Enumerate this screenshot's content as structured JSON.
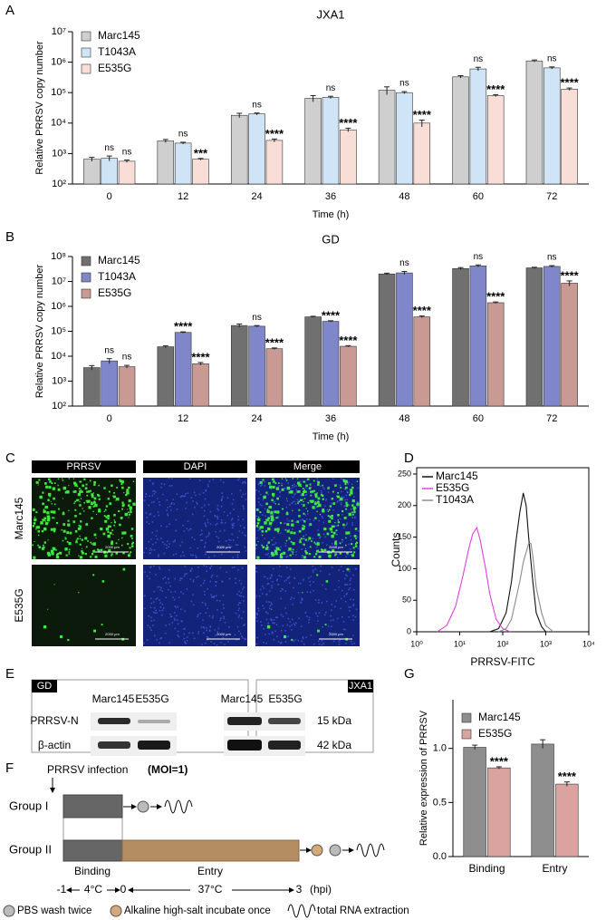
{
  "panel_labels": [
    "A",
    "B",
    "C",
    "D",
    "E",
    "F",
    "G"
  ],
  "chart_data": [
    {
      "type": "bar",
      "title": "JXA1",
      "xlabel": "Time (h)",
      "ylabel": "Relative PRRSV copy number",
      "categories": [
        "0",
        "12",
        "24",
        "36",
        "48",
        "60",
        "72"
      ],
      "log_y": true,
      "legend": "top-left",
      "ylim": [
        100,
        10000000
      ],
      "yticks": [
        {
          "value": 100,
          "label": "10²"
        },
        {
          "value": 1000,
          "label": "10³"
        },
        {
          "value": 10000,
          "label": "10⁴"
        },
        {
          "value": 100000,
          "label": "10⁵"
        },
        {
          "value": 1000000,
          "label": "10⁶"
        },
        {
          "value": 10000000,
          "label": "10⁷"
        }
      ],
      "series": [
        {
          "name": "Marc145",
          "color": "#cfcfcf",
          "values": [
            650,
            2600,
            18000,
            65000,
            120000,
            330000,
            1100000
          ],
          "errors": [
            100,
            300,
            3000,
            15000,
            35000,
            30000,
            80000
          ]
        },
        {
          "name": "T1043A",
          "color": "#cfe5f7",
          "values": [
            700,
            2200,
            20000,
            70000,
            100000,
            600000,
            650000
          ],
          "errors": [
            130,
            150,
            1500,
            6000,
            8000,
            80000,
            50000
          ],
          "sig": [
            "ns",
            "ns",
            "ns",
            "ns",
            "ns",
            "ns",
            "ns"
          ]
        },
        {
          "name": "E535G",
          "color": "#f9ddd7",
          "values": [
            560,
            650,
            2700,
            6000,
            10000,
            80000,
            130000
          ],
          "errors": [
            50,
            40,
            300,
            800,
            2500,
            6000,
            12000
          ],
          "sig": [
            "ns",
            "***",
            "****",
            "****",
            "****",
            "****",
            "****"
          ]
        }
      ]
    },
    {
      "type": "bar",
      "title": "GD",
      "xlabel": "Time (h)",
      "ylabel": "Relative PRRSV copy number",
      "categories": [
        "0",
        "12",
        "24",
        "36",
        "48",
        "60",
        "72"
      ],
      "log_y": true,
      "legend": "top-left",
      "ylim": [
        100,
        100000000
      ],
      "yticks": [
        {
          "value": 100,
          "label": "10²"
        },
        {
          "value": 1000,
          "label": "10³"
        },
        {
          "value": 10000,
          "label": "10⁴"
        },
        {
          "value": 100000,
          "label": "10⁵"
        },
        {
          "value": 1000000,
          "label": "10⁶"
        },
        {
          "value": 10000000,
          "label": "10⁷"
        },
        {
          "value": 100000000,
          "label": "10⁸"
        }
      ],
      "series": [
        {
          "name": "Marc145",
          "color": "#707070",
          "values": [
            3500,
            24000,
            170000,
            380000,
            20000000,
            33000000,
            35000000
          ],
          "errors": [
            700,
            2000,
            25000,
            20000,
            1500000,
            3000000,
            2000000
          ]
        },
        {
          "name": "T1043A",
          "color": "#7f86c9",
          "values": [
            6500,
            90000,
            160000,
            250000,
            22000000,
            42000000,
            40000000
          ],
          "errors": [
            1500,
            5000,
            10000,
            15000,
            3000000,
            4000000,
            3000000
          ],
          "sig": [
            "ns",
            "****",
            "ns",
            "****",
            "ns",
            "ns",
            "ns"
          ]
        },
        {
          "name": "E535G",
          "color": "#c99a94",
          "values": [
            3800,
            5000,
            20000,
            25000,
            380000,
            1400000,
            8500000
          ],
          "errors": [
            500,
            600,
            1500,
            1500,
            30000,
            100000,
            2000000
          ],
          "sig": [
            "ns",
            "****",
            "****",
            "****",
            "****",
            "****",
            "****"
          ]
        }
      ]
    },
    {
      "type": "line",
      "xlabel": "PRRSV-FITC",
      "ylabel": "Counts",
      "log_x": true,
      "legend": "top-left",
      "xlim": [
        1,
        10000
      ],
      "ylim": [
        0,
        260
      ],
      "xticks": [
        {
          "value": 1,
          "label": "10⁰"
        },
        {
          "value": 10,
          "label": "10¹"
        },
        {
          "value": 100,
          "label": "10²"
        },
        {
          "value": 1000,
          "label": "10³"
        },
        {
          "value": 10000,
          "label": "10⁴"
        }
      ],
      "yticks": [
        0,
        50,
        100,
        150,
        200,
        250
      ],
      "series": [
        {
          "name": "Marc145",
          "color": "#111111",
          "x": [
            50,
            80,
            120,
            160,
            200,
            250,
            300,
            350,
            400,
            500,
            600,
            800,
            1000
          ],
          "values": [
            0,
            5,
            30,
            80,
            140,
            190,
            220,
            200,
            150,
            80,
            30,
            8,
            0
          ]
        },
        {
          "name": "E535G",
          "color": "#e040e0",
          "x": [
            3,
            5,
            8,
            12,
            16,
            20,
            25,
            30,
            40,
            50,
            70,
            100,
            150
          ],
          "values": [
            0,
            10,
            40,
            90,
            130,
            155,
            165,
            145,
            100,
            60,
            20,
            5,
            0
          ]
        },
        {
          "name": "T1043A",
          "color": "#8a8a8a",
          "x": [
            80,
            120,
            160,
            200,
            250,
            300,
            400,
            450,
            500,
            600,
            800,
            1000,
            1500
          ],
          "values": [
            0,
            5,
            20,
            50,
            80,
            110,
            140,
            140,
            120,
            70,
            30,
            10,
            0
          ]
        }
      ]
    },
    {
      "type": "bar",
      "ylabel": "Relative expression of PRRSV",
      "categories": [
        "Binding",
        "Entry"
      ],
      "legend": "top-left",
      "ylim": [
        0,
        1.45
      ],
      "yticks": [
        {
          "value": 0,
          "label": "0.0"
        },
        {
          "value": 0.5,
          "label": "0.5"
        },
        {
          "value": 1,
          "label": "1.0"
        }
      ],
      "series": [
        {
          "name": "Marc145",
          "color": "#8e8e8e",
          "values": [
            1.01,
            1.04
          ],
          "errors": [
            0.02,
            0.04
          ]
        },
        {
          "name": "E535G",
          "color": "#dba39f",
          "values": [
            0.82,
            0.67
          ],
          "errors": [
            0.01,
            0.02
          ],
          "sig": [
            "****",
            "****"
          ]
        }
      ]
    }
  ],
  "micrographs": {
    "columns": [
      "PRRSV",
      "DAPI",
      "Merge"
    ],
    "rows": [
      "Marc145",
      "E535G"
    ],
    "scale_bar": "2000 μm"
  },
  "western": {
    "left": {
      "tag": "GD",
      "lanes": [
        "Marc145",
        "E535G"
      ],
      "rows": [
        "PRRSV-N",
        "β-actin"
      ]
    },
    "right": {
      "tag": "JXA1",
      "lanes": [
        "Marc145",
        "E535G"
      ],
      "sizes": [
        "15 kDa",
        "42 kDa"
      ]
    }
  },
  "schematic": {
    "infection": "PRRSV infection",
    "moi": "(MOI=1)",
    "groups": [
      "Group I",
      "Group II"
    ],
    "phases": [
      "Binding",
      "Entry"
    ],
    "timeline": [
      "-1",
      "4°C",
      "0",
      "37°C",
      "3",
      "(hpi)"
    ],
    "legend": [
      "PBS wash twice",
      "Alkaline high-salt incubate once",
      "total RNA extraction"
    ]
  }
}
